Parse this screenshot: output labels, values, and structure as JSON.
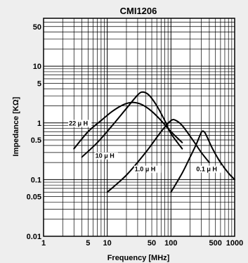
{
  "chart_data": {
    "type": "line",
    "title": "CMI1206",
    "xlabel": "Frequency [MHz]",
    "ylabel": "Impedance [KΩ]",
    "xscale": "log",
    "yscale": "log",
    "xlim": [
      1,
      1000
    ],
    "ylim": [
      0.01,
      70
    ],
    "grid": true,
    "x_ticks": [
      "1",
      "5",
      "10",
      "50",
      "100",
      "500",
      "1000"
    ],
    "x_tick_values": [
      1,
      5,
      10,
      50,
      100,
      500,
      1000
    ],
    "y_ticks": [
      "0.01",
      "0.05",
      "0.1",
      "0.5",
      "1",
      "5",
      "10",
      "50"
    ],
    "y_tick_values": [
      0.01,
      0.05,
      0.1,
      0.5,
      1,
      5,
      10,
      50
    ],
    "series": [
      {
        "name": "22 μ H",
        "x": [
          3,
          5,
          8,
          12,
          18,
          25,
          35,
          50,
          70,
          100,
          150
        ],
        "y": [
          0.35,
          0.7,
          1.1,
          1.6,
          2.1,
          2.3,
          2.1,
          1.6,
          1.1,
          0.7,
          0.45
        ]
      },
      {
        "name": "10 μ H",
        "x": [
          4,
          7,
          12,
          20,
          30,
          36,
          45,
          60,
          80,
          100,
          150
        ],
        "y": [
          0.25,
          0.45,
          0.9,
          1.8,
          3.1,
          3.5,
          3.1,
          2.0,
          1.1,
          0.65,
          0.35
        ]
      },
      {
        "name": "1.0 μ H",
        "x": [
          10,
          20,
          40,
          70,
          100,
          120,
          150,
          220,
          300,
          400
        ],
        "y": [
          0.06,
          0.12,
          0.3,
          0.7,
          1.1,
          1.1,
          0.9,
          0.5,
          0.3,
          0.2
        ]
      },
      {
        "name": "0.1 μ H",
        "x": [
          100,
          150,
          200,
          250,
          300,
          330,
          360,
          450,
          600,
          800,
          1000
        ],
        "y": [
          0.06,
          0.13,
          0.25,
          0.42,
          0.68,
          0.7,
          0.6,
          0.35,
          0.2,
          0.13,
          0.1
        ]
      }
    ],
    "labels": [
      {
        "text": "22 μ H",
        "x": 2.5,
        "y": 0.9
      },
      {
        "text": "10 μ H",
        "x": 6.5,
        "y": 0.24
      },
      {
        "text": "1.0 μ H",
        "x": 27,
        "y": 0.14
      },
      {
        "text": "0.1 μ H",
        "x": 250,
        "y": 0.14
      }
    ]
  }
}
